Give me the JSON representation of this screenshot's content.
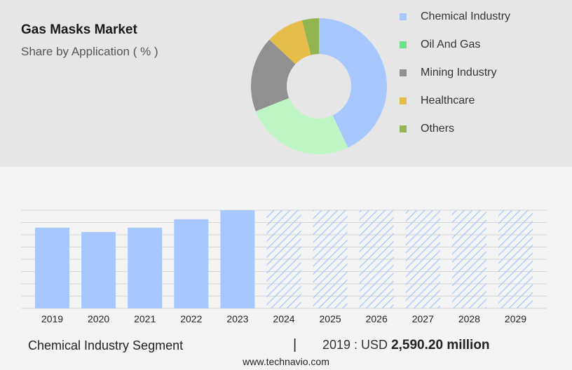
{
  "header": {
    "title": "Gas Masks Market",
    "subtitle": "Share by Application ( % )"
  },
  "legend": {
    "items": [
      {
        "label": "Chemical Industry",
        "color": "#a6c8ff"
      },
      {
        "label": "Oil And Gas",
        "color": "#6ee08a"
      },
      {
        "label": "Mining Industry",
        "color": "#909090"
      },
      {
        "label": "Healthcare",
        "color": "#e5bd4a"
      },
      {
        "label": "Others",
        "color": "#92b552"
      }
    ]
  },
  "footer": {
    "segment": "Chemical Industry Segment",
    "divider": "|",
    "year_label": "2019 : USD",
    "value": "2,590.20 million",
    "site": "www.technavio.com"
  },
  "chart_data": [
    {
      "type": "pie",
      "title": "Share by Application ( % )",
      "donut": true,
      "categories": [
        "Chemical Industry",
        "Oil And Gas",
        "Mining Industry",
        "Healthcare",
        "Others"
      ],
      "values": [
        43,
        26,
        18,
        9,
        4
      ],
      "colors": [
        "#a6c8ff",
        "#bdf5c4",
        "#909090",
        "#e5bd4a",
        "#92b552"
      ]
    },
    {
      "type": "bar",
      "categories": [
        "2019",
        "2020",
        "2021",
        "2022",
        "2023",
        "2024",
        "2025",
        "2026",
        "2027",
        "2028",
        "2029"
      ],
      "values": [
        2590.2,
        2450,
        2590,
        2860,
        3150,
        null,
        null,
        null,
        null,
        null,
        null
      ],
      "forecast_from": "2024",
      "bar_color": "#a6c8ff",
      "forecast_pattern": "hatched",
      "ylim": [
        0,
        3150
      ],
      "grid": true
    }
  ]
}
